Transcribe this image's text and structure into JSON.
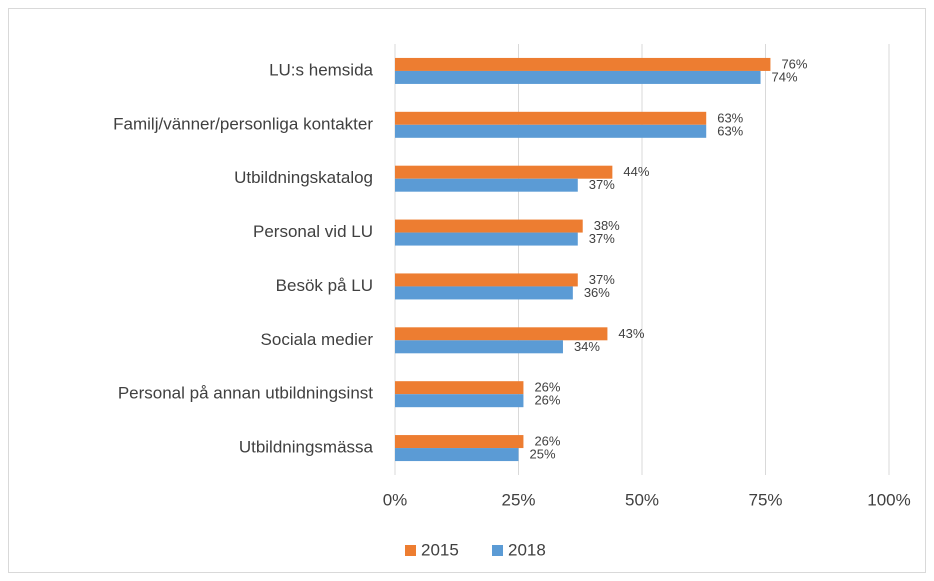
{
  "chart_data": {
    "type": "bar",
    "orientation": "horizontal",
    "categories": [
      "LU:s hemsida",
      "Familj/vänner/personliga kontakter",
      "Utbildningskatalog",
      "Personal vid LU",
      "Besök på LU",
      "Sociala medier",
      "Personal på annan utbildningsinst",
      "Utbildningsmässa"
    ],
    "series": [
      {
        "name": "2015",
        "color": "#ed7d31",
        "values": [
          76,
          63,
          44,
          38,
          37,
          43,
          26,
          26
        ],
        "value_labels": [
          "76%",
          "63%",
          "44%",
          "38%",
          "37%",
          "43%",
          "26%",
          "26%"
        ]
      },
      {
        "name": "2018",
        "color": "#5b9bd5",
        "values": [
          74,
          63,
          37,
          37,
          36,
          34,
          26,
          25
        ],
        "value_labels": [
          "74%",
          "63%",
          "37%",
          "37%",
          "36%",
          "34%",
          "26%",
          "25%"
        ]
      }
    ],
    "xlim": [
      0,
      100
    ],
    "xticks": [
      {
        "value": 0,
        "label": "0%"
      },
      {
        "value": 25,
        "label": "25%"
      },
      {
        "value": 50,
        "label": "50%"
      },
      {
        "value": 75,
        "label": "75%"
      },
      {
        "value": 100,
        "label": "100%"
      }
    ],
    "grid": true,
    "legend": "bottom"
  }
}
